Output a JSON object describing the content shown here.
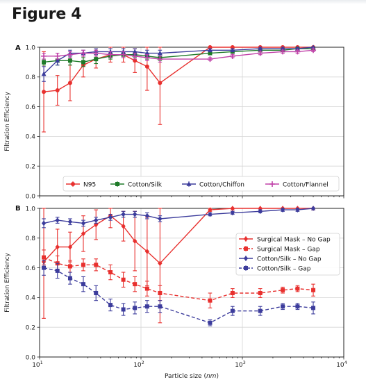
{
  "figure_title": "Figure 4",
  "x_axis": {
    "label": "Particle size (nm)",
    "label_prefix": "Particle size (",
    "label_unit": "nm",
    "label_suffix": ")",
    "scale": "log",
    "xlim": [
      10,
      10000
    ]
  },
  "chart_data": [
    {
      "panel": "A",
      "type": "line",
      "ylabel": "Filtration Efficiency",
      "ylim": [
        0,
        1
      ],
      "yticks": [
        "0.0",
        "0.2",
        "0.4",
        "0.6",
        "0.8",
        "1.0"
      ],
      "xscale": "log",
      "xlim": [
        10,
        10000
      ],
      "grid": true,
      "legend": {
        "placement": "bottom",
        "ncol": 4
      },
      "series": [
        {
          "name": "N95",
          "color": "#e8302e",
          "marker": "circle",
          "dash": "solid",
          "x": [
            11,
            15,
            20,
            27,
            36,
            50,
            67,
            87,
            115,
            154,
            480,
            800,
            1500,
            2500,
            3500,
            5000
          ],
          "y": [
            0.7,
            0.71,
            0.76,
            0.88,
            0.92,
            0.95,
            0.95,
            0.91,
            0.87,
            0.76,
            1.0,
            1.0,
            1.0,
            1.0,
            1.0,
            1.0
          ],
          "err": [
            0.27,
            0.1,
            0.12,
            0.08,
            0.06,
            0.05,
            0.05,
            0.08,
            0.16,
            0.28,
            0.01,
            0.01,
            0.01,
            0.01,
            0.01,
            0.01
          ]
        },
        {
          "name": "Cotton/Silk",
          "color": "#1e7a28",
          "marker": "square",
          "dash": "solid",
          "x": [
            11,
            15,
            20,
            27,
            36,
            50,
            67,
            87,
            115,
            154,
            480,
            800,
            1500,
            2500,
            3500,
            5000
          ],
          "y": [
            0.9,
            0.91,
            0.91,
            0.9,
            0.92,
            0.94,
            0.95,
            0.95,
            0.94,
            0.93,
            0.96,
            0.97,
            0.98,
            0.98,
            0.99,
            0.99
          ],
          "err": [
            0.02,
            0.03,
            0.03,
            0.03,
            0.03,
            0.02,
            0.02,
            0.02,
            0.02,
            0.02,
            0.01,
            0.01,
            0.01,
            0.01,
            0.01,
            0.01
          ]
        },
        {
          "name": "Cotton/Chiffon",
          "color": "#3c3c9c",
          "marker": "triangle",
          "dash": "solid",
          "x": [
            11,
            15,
            20,
            27,
            36,
            50,
            67,
            87,
            115,
            154,
            480,
            800,
            1500,
            2500,
            3500,
            5000
          ],
          "y": [
            0.82,
            0.91,
            0.96,
            0.96,
            0.97,
            0.97,
            0.97,
            0.97,
            0.96,
            0.96,
            0.98,
            0.98,
            0.99,
            0.99,
            0.99,
            1.0
          ],
          "err": [
            0.05,
            0.03,
            0.02,
            0.02,
            0.02,
            0.02,
            0.02,
            0.02,
            0.02,
            0.02,
            0.01,
            0.01,
            0.01,
            0.01,
            0.01,
            0.01
          ]
        },
        {
          "name": "Cotton/Flannel",
          "color": "#c040a8",
          "marker": "plus",
          "dash": "solid",
          "x": [
            11,
            15,
            20,
            27,
            36,
            50,
            67,
            87,
            115,
            154,
            480,
            800,
            1500,
            2500,
            3500,
            5000
          ],
          "y": [
            0.94,
            0.94,
            0.95,
            0.96,
            0.96,
            0.95,
            0.95,
            0.94,
            0.93,
            0.92,
            0.92,
            0.94,
            0.96,
            0.97,
            0.97,
            0.98
          ],
          "err": [
            0.02,
            0.02,
            0.02,
            0.02,
            0.02,
            0.02,
            0.02,
            0.02,
            0.02,
            0.02,
            0.01,
            0.01,
            0.01,
            0.01,
            0.01,
            0.01
          ]
        }
      ]
    },
    {
      "panel": "B",
      "type": "line",
      "ylabel": "Filtration Efficiency",
      "ylim": [
        0,
        1
      ],
      "yticks": [
        "0.0",
        "0.2",
        "0.4",
        "0.6",
        "0.8",
        "1.0"
      ],
      "xlabel": "Particle size (nm)",
      "xticks": [
        "10^1",
        "10^2",
        "10^3",
        "10^4"
      ],
      "xscale": "log",
      "xlim": [
        10,
        10000
      ],
      "grid": true,
      "legend": {
        "placement": "center-right",
        "ncol": 1
      },
      "series": [
        {
          "name": "Surgical Mask – No Gap",
          "color": "#e8302e",
          "marker": "diamond",
          "dash": "solid",
          "x": [
            11,
            15,
            20,
            27,
            36,
            50,
            67,
            87,
            115,
            154,
            480,
            800,
            1500,
            2500,
            3500,
            5000
          ],
          "y": [
            0.64,
            0.74,
            0.74,
            0.83,
            0.89,
            0.95,
            0.88,
            0.78,
            0.71,
            0.63,
            0.99,
            1.0,
            1.0,
            1.0,
            1.0,
            1.0
          ],
          "err": [
            0.38,
            0.12,
            0.1,
            0.12,
            0.1,
            0.08,
            0.1,
            0.2,
            0.23,
            0.4,
            0.01,
            0.01,
            0.01,
            0.01,
            0.01,
            0.01
          ]
        },
        {
          "name": "Surgical Mask – Gap",
          "color": "#e8302e",
          "marker": "square",
          "dash": "dashed",
          "x": [
            11,
            15,
            20,
            27,
            36,
            50,
            67,
            87,
            115,
            154,
            480,
            800,
            1500,
            2500,
            3500,
            5000
          ],
          "y": [
            0.67,
            0.63,
            0.61,
            0.62,
            0.62,
            0.57,
            0.52,
            0.49,
            0.46,
            0.43,
            0.38,
            0.43,
            0.43,
            0.45,
            0.46,
            0.45
          ],
          "err": [
            0.05,
            0.05,
            0.04,
            0.04,
            0.04,
            0.05,
            0.05,
            0.05,
            0.05,
            0.05,
            0.05,
            0.03,
            0.03,
            0.02,
            0.02,
            0.04
          ]
        },
        {
          "name": "Cotton/Silk – No Gap",
          "color": "#3c3c9c",
          "marker": "diamond",
          "dash": "solid",
          "x": [
            11,
            15,
            20,
            27,
            36,
            50,
            67,
            87,
            115,
            154,
            480,
            800,
            1500,
            2500,
            3500,
            5000
          ],
          "y": [
            0.9,
            0.92,
            0.91,
            0.9,
            0.92,
            0.94,
            0.96,
            0.96,
            0.95,
            0.93,
            0.96,
            0.97,
            0.98,
            0.99,
            0.99,
            1.0
          ],
          "err": [
            0.03,
            0.02,
            0.02,
            0.02,
            0.02,
            0.02,
            0.02,
            0.02,
            0.02,
            0.02,
            0.01,
            0.01,
            0.01,
            0.01,
            0.01,
            0.01
          ]
        },
        {
          "name": "Cotton/Silk – Gap",
          "color": "#3c3c9c",
          "marker": "square",
          "dash": "dashed",
          "x": [
            11,
            15,
            20,
            27,
            36,
            50,
            67,
            87,
            115,
            154,
            480,
            800,
            1500,
            2500,
            3500,
            5000
          ],
          "y": [
            0.6,
            0.58,
            0.53,
            0.49,
            0.43,
            0.35,
            0.32,
            0.33,
            0.34,
            0.34,
            0.23,
            0.31,
            0.31,
            0.34,
            0.34,
            0.33
          ],
          "err": [
            0.05,
            0.05,
            0.04,
            0.05,
            0.05,
            0.04,
            0.04,
            0.04,
            0.04,
            0.04,
            0.02,
            0.03,
            0.03,
            0.02,
            0.02,
            0.04
          ]
        }
      ]
    }
  ]
}
